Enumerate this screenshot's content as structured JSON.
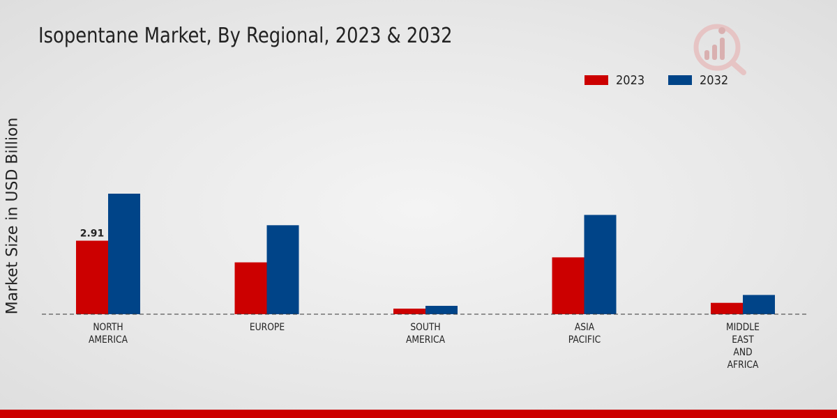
{
  "chart_data": {
    "type": "bar",
    "title": "Isopentane Market, By Regional, 2023 & 2032",
    "ylabel": "Market Size in USD Billion",
    "xlabel": "",
    "ylim": [
      0,
      4.8
    ],
    "categories": [
      [
        "NORTH",
        "AMERICA"
      ],
      [
        "EUROPE"
      ],
      [
        "SOUTH",
        "AMERICA"
      ],
      [
        "ASIA",
        "PACIFIC"
      ],
      [
        "MIDDLE",
        "EAST",
        "AND",
        "AFRICA"
      ]
    ],
    "series": [
      {
        "name": "2023",
        "color": "#cc0000",
        "values": [
          2.91,
          2.05,
          0.22,
          2.25,
          0.45
        ]
      },
      {
        "name": "2032",
        "color": "#004488",
        "values": [
          4.77,
          3.52,
          0.33,
          3.93,
          0.76
        ]
      }
    ],
    "data_labels": [
      {
        "series": 0,
        "index": 0,
        "text": "2.91"
      }
    ],
    "legend_position": "top-right",
    "grid": false
  }
}
